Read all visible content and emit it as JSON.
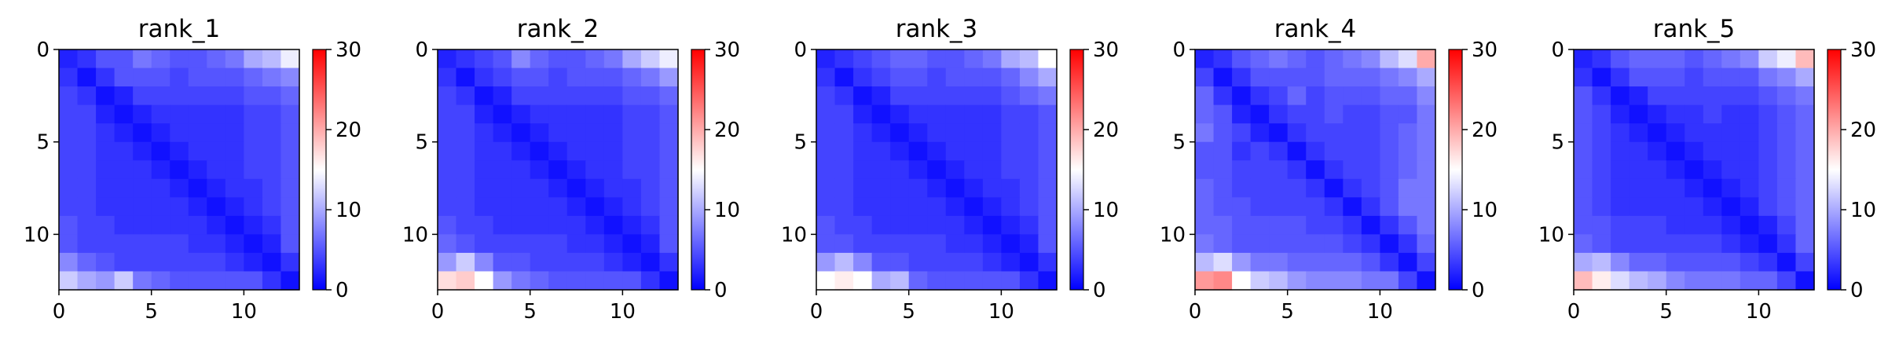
{
  "chart_data": [
    {
      "type": "heatmap",
      "title": "rank_1",
      "size": 13,
      "xticks": [
        0,
        5,
        10
      ],
      "yticks": [
        0,
        5,
        10
      ],
      "colorbar": {
        "cmap": "bwr",
        "ticks": [
          0,
          10,
          20,
          30
        ],
        "range": [
          0,
          30
        ]
      },
      "values": [
        [
          2,
          3,
          5,
          5,
          7,
          6,
          5,
          5,
          6,
          7,
          10,
          11,
          14
        ],
        [
          3,
          1,
          3,
          5,
          5,
          5,
          4,
          5,
          5,
          5,
          6,
          7,
          8
        ],
        [
          4,
          3,
          1,
          2,
          4,
          4,
          4,
          4,
          4,
          4,
          5,
          5,
          6
        ],
        [
          4,
          4,
          2,
          1,
          2,
          3,
          3,
          3,
          3,
          3,
          4,
          4,
          5
        ],
        [
          4,
          4,
          3,
          2,
          1,
          2,
          3,
          3,
          3,
          3,
          4,
          4,
          5
        ],
        [
          4,
          4,
          3,
          3,
          2,
          1,
          2,
          3,
          3,
          3,
          4,
          4,
          5
        ],
        [
          4,
          4,
          3,
          3,
          3,
          2,
          1,
          2,
          3,
          3,
          4,
          4,
          5
        ],
        [
          4,
          4,
          3,
          3,
          3,
          3,
          2,
          1,
          2,
          3,
          3,
          4,
          5
        ],
        [
          4,
          4,
          3,
          3,
          3,
          3,
          3,
          2,
          1,
          2,
          3,
          4,
          5
        ],
        [
          5,
          4,
          4,
          3,
          3,
          3,
          3,
          3,
          2,
          1,
          2,
          3,
          5
        ],
        [
          5,
          4,
          4,
          4,
          4,
          4,
          4,
          3,
          3,
          2,
          1,
          2,
          5
        ],
        [
          8,
          6,
          5,
          4,
          4,
          4,
          4,
          4,
          4,
          3,
          2,
          1,
          3
        ],
        [
          12,
          10,
          9,
          12,
          7,
          6,
          5,
          5,
          5,
          5,
          5,
          3,
          1
        ]
      ]
    },
    {
      "type": "heatmap",
      "title": "rank_2",
      "size": 13,
      "xticks": [
        0,
        5,
        10
      ],
      "yticks": [
        0,
        5,
        10
      ],
      "colorbar": {
        "cmap": "bwr",
        "ticks": [
          0,
          10,
          20,
          30
        ],
        "range": [
          0,
          30
        ]
      },
      "values": [
        [
          2,
          3,
          4,
          5,
          8,
          6,
          5,
          5,
          6,
          7,
          10,
          12,
          14
        ],
        [
          3,
          1,
          3,
          4,
          5,
          5,
          4,
          5,
          5,
          5,
          6,
          7,
          9
        ],
        [
          4,
          3,
          1,
          2,
          4,
          4,
          4,
          4,
          4,
          4,
          5,
          5,
          6
        ],
        [
          4,
          4,
          2,
          1,
          2,
          3,
          3,
          3,
          3,
          3,
          4,
          4,
          5
        ],
        [
          4,
          4,
          3,
          2,
          1,
          2,
          3,
          3,
          3,
          3,
          4,
          4,
          5
        ],
        [
          4,
          4,
          3,
          3,
          2,
          1,
          2,
          3,
          3,
          3,
          4,
          4,
          5
        ],
        [
          4,
          4,
          3,
          3,
          3,
          2,
          1,
          2,
          3,
          3,
          4,
          4,
          5
        ],
        [
          4,
          4,
          3,
          3,
          3,
          3,
          2,
          1,
          2,
          3,
          3,
          4,
          5
        ],
        [
          4,
          4,
          3,
          3,
          3,
          3,
          3,
          2,
          1,
          2,
          3,
          4,
          5
        ],
        [
          5,
          4,
          4,
          3,
          3,
          3,
          3,
          3,
          2,
          1,
          2,
          3,
          5
        ],
        [
          6,
          5,
          4,
          4,
          4,
          4,
          4,
          3,
          3,
          2,
          1,
          2,
          5
        ],
        [
          9,
          12,
          8,
          5,
          5,
          4,
          4,
          4,
          4,
          3,
          2,
          1,
          3
        ],
        [
          17,
          18,
          15,
          9,
          7,
          6,
          5,
          5,
          5,
          5,
          5,
          3,
          1
        ]
      ]
    },
    {
      "type": "heatmap",
      "title": "rank_3",
      "size": 13,
      "xticks": [
        0,
        5,
        10
      ],
      "yticks": [
        0,
        5,
        10
      ],
      "colorbar": {
        "cmap": "bwr",
        "ticks": [
          0,
          10,
          20,
          30
        ],
        "range": [
          0,
          30
        ]
      },
      "values": [
        [
          2,
          3,
          4,
          5,
          6,
          6,
          5,
          5,
          6,
          7,
          10,
          11,
          15
        ],
        [
          3,
          1,
          3,
          4,
          5,
          5,
          4,
          5,
          5,
          5,
          6,
          8,
          10
        ],
        [
          4,
          3,
          1,
          2,
          4,
          4,
          4,
          4,
          4,
          4,
          5,
          6,
          7
        ],
        [
          4,
          4,
          2,
          1,
          2,
          3,
          3,
          3,
          3,
          3,
          4,
          4,
          5
        ],
        [
          4,
          4,
          3,
          2,
          1,
          2,
          3,
          3,
          3,
          3,
          4,
          4,
          5
        ],
        [
          4,
          4,
          3,
          3,
          2,
          1,
          2,
          3,
          3,
          3,
          4,
          4,
          5
        ],
        [
          4,
          4,
          3,
          3,
          3,
          2,
          1,
          2,
          3,
          3,
          4,
          4,
          5
        ],
        [
          4,
          4,
          3,
          3,
          3,
          3,
          2,
          1,
          2,
          3,
          3,
          4,
          5
        ],
        [
          4,
          4,
          3,
          3,
          3,
          3,
          3,
          2,
          1,
          2,
          3,
          4,
          5
        ],
        [
          5,
          4,
          4,
          3,
          3,
          3,
          3,
          3,
          2,
          1,
          2,
          3,
          5
        ],
        [
          5,
          5,
          4,
          4,
          4,
          4,
          4,
          3,
          3,
          2,
          1,
          2,
          5
        ],
        [
          9,
          11,
          8,
          5,
          5,
          4,
          4,
          4,
          4,
          3,
          2,
          1,
          3
        ],
        [
          15,
          16,
          15,
          10,
          11,
          6,
          5,
          5,
          5,
          5,
          5,
          3,
          1
        ]
      ]
    },
    {
      "type": "heatmap",
      "title": "rank_4",
      "size": 13,
      "xticks": [
        0,
        5,
        10
      ],
      "yticks": [
        0,
        5,
        10
      ],
      "colorbar": {
        "cmap": "bwr",
        "ticks": [
          0,
          10,
          20,
          30
        ],
        "range": [
          0,
          30
        ]
      },
      "values": [
        [
          2,
          3,
          5,
          6,
          7,
          6,
          5,
          6,
          7,
          8,
          11,
          13,
          20
        ],
        [
          4,
          1,
          3,
          5,
          5,
          5,
          5,
          6,
          6,
          6,
          7,
          8,
          10
        ],
        [
          6,
          3,
          1,
          3,
          4,
          6,
          4,
          5,
          5,
          5,
          6,
          6,
          8
        ],
        [
          6,
          5,
          2,
          1,
          3,
          4,
          4,
          5,
          4,
          4,
          5,
          5,
          7
        ],
        [
          7,
          5,
          4,
          2,
          1,
          3,
          4,
          4,
          4,
          4,
          5,
          6,
          7
        ],
        [
          5,
          5,
          3,
          4,
          3,
          1,
          3,
          4,
          4,
          4,
          5,
          6,
          7
        ],
        [
          5,
          5,
          4,
          4,
          4,
          3,
          1,
          3,
          4,
          4,
          5,
          6,
          7
        ],
        [
          6,
          5,
          4,
          4,
          4,
          4,
          3,
          1,
          3,
          4,
          5,
          7,
          7
        ],
        [
          6,
          5,
          5,
          4,
          4,
          4,
          4,
          3,
          1,
          3,
          5,
          7,
          7
        ],
        [
          6,
          6,
          5,
          5,
          5,
          5,
          4,
          4,
          3,
          1,
          3,
          5,
          7
        ],
        [
          7,
          6,
          5,
          5,
          5,
          5,
          5,
          5,
          4,
          3,
          1,
          3,
          6
        ],
        [
          11,
          13,
          9,
          7,
          7,
          6,
          6,
          6,
          6,
          5,
          3,
          1,
          4
        ],
        [
          21,
          22,
          15,
          12,
          11,
          9,
          8,
          8,
          8,
          7,
          7,
          4,
          1
        ]
      ]
    },
    {
      "type": "heatmap",
      "title": "rank_5",
      "size": 13,
      "xticks": [
        0,
        5,
        10
      ],
      "yticks": [
        0,
        5,
        10
      ],
      "colorbar": {
        "cmap": "bwr",
        "ticks": [
          0,
          10,
          20,
          30
        ],
        "range": [
          0,
          30
        ]
      },
      "values": [
        [
          2,
          3,
          5,
          6,
          6,
          6,
          5,
          6,
          7,
          8,
          12,
          14,
          19
        ],
        [
          3,
          1,
          3,
          5,
          5,
          5,
          4,
          5,
          5,
          5,
          7,
          8,
          10
        ],
        [
          5,
          3,
          1,
          2,
          4,
          4,
          4,
          4,
          4,
          4,
          5,
          6,
          7
        ],
        [
          5,
          4,
          2,
          1,
          2,
          3,
          3,
          4,
          3,
          3,
          4,
          5,
          6
        ],
        [
          5,
          4,
          3,
          2,
          1,
          2,
          3,
          3,
          3,
          3,
          4,
          5,
          6
        ],
        [
          5,
          4,
          3,
          3,
          2,
          1,
          2,
          3,
          3,
          3,
          4,
          5,
          6
        ],
        [
          5,
          4,
          3,
          3,
          3,
          2,
          1,
          2,
          3,
          3,
          4,
          5,
          6
        ],
        [
          5,
          4,
          3,
          3,
          3,
          3,
          2,
          1,
          2,
          3,
          4,
          5,
          6
        ],
        [
          5,
          4,
          3,
          3,
          3,
          3,
          3,
          2,
          1,
          2,
          4,
          5,
          6
        ],
        [
          5,
          5,
          4,
          4,
          4,
          3,
          3,
          3,
          2,
          1,
          2,
          4,
          6
        ],
        [
          6,
          5,
          4,
          4,
          4,
          4,
          4,
          4,
          3,
          2,
          1,
          3,
          6
        ],
        [
          10,
          11,
          8,
          6,
          6,
          5,
          5,
          5,
          5,
          4,
          3,
          1,
          4
        ],
        [
          19,
          16,
          13,
          11,
          10,
          8,
          7,
          7,
          7,
          6,
          6,
          4,
          1
        ]
      ]
    }
  ]
}
